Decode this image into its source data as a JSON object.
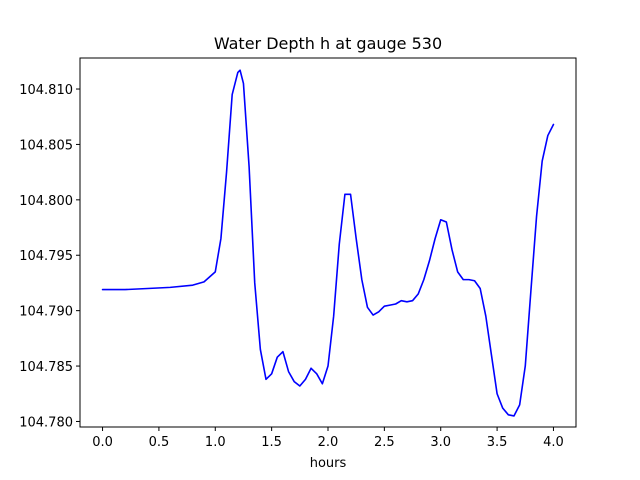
{
  "chart_data": {
    "type": "line",
    "title": "Water Depth h at gauge 530",
    "xlabel": "hours",
    "ylabel": "",
    "xlim": [
      -0.2,
      4.2
    ],
    "ylim": [
      104.7795,
      104.8128
    ],
    "xticks": [
      0.0,
      0.5,
      1.0,
      1.5,
      2.0,
      2.5,
      3.0,
      3.5,
      4.0
    ],
    "xtick_labels": [
      "0.0",
      "0.5",
      "1.0",
      "1.5",
      "2.0",
      "2.5",
      "3.0",
      "3.5",
      "4.0"
    ],
    "yticks": [
      104.78,
      104.785,
      104.79,
      104.795,
      104.8,
      104.805,
      104.81
    ],
    "ytick_labels": [
      "104.780",
      "104.785",
      "104.790",
      "104.795",
      "104.800",
      "104.805",
      "104.810"
    ],
    "grid": false,
    "series": [
      {
        "color": "#0000ff",
        "x": [
          0.0,
          0.2,
          0.4,
          0.6,
          0.8,
          0.9,
          1.0,
          1.05,
          1.1,
          1.15,
          1.2,
          1.22,
          1.25,
          1.3,
          1.35,
          1.4,
          1.45,
          1.5,
          1.55,
          1.6,
          1.65,
          1.7,
          1.75,
          1.8,
          1.85,
          1.9,
          1.95,
          2.0,
          2.05,
          2.1,
          2.15,
          2.2,
          2.25,
          2.3,
          2.35,
          2.4,
          2.45,
          2.5,
          2.55,
          2.6,
          2.65,
          2.7,
          2.75,
          2.8,
          2.85,
          2.9,
          2.95,
          3.0,
          3.05,
          3.1,
          3.15,
          3.2,
          3.25,
          3.3,
          3.35,
          3.4,
          3.45,
          3.5,
          3.55,
          3.6,
          3.65,
          3.7,
          3.75,
          3.8,
          3.85,
          3.9,
          3.95,
          4.0
        ],
        "y": [
          104.7919,
          104.7919,
          104.792,
          104.7921,
          104.7923,
          104.7926,
          104.7935,
          104.7965,
          104.8025,
          104.8095,
          104.8115,
          104.8117,
          104.8105,
          104.803,
          104.7925,
          104.7865,
          104.7838,
          104.7843,
          104.7858,
          104.7863,
          104.7845,
          104.7836,
          104.7832,
          104.7838,
          104.7848,
          104.7843,
          104.7834,
          104.785,
          104.7895,
          104.796,
          104.8005,
          104.8005,
          104.7965,
          104.7928,
          104.7903,
          104.7896,
          104.7899,
          104.7904,
          104.7905,
          104.7906,
          104.7909,
          104.7908,
          104.7909,
          104.7915,
          104.7928,
          104.7945,
          104.7965,
          104.7982,
          104.798,
          104.7955,
          104.7935,
          104.7928,
          104.7928,
          104.7927,
          104.792,
          104.7895,
          104.786,
          104.7825,
          104.7812,
          104.7806,
          104.7805,
          104.7815,
          104.785,
          104.7918,
          104.7985,
          104.8035,
          104.8058,
          104.8068
        ]
      }
    ]
  }
}
